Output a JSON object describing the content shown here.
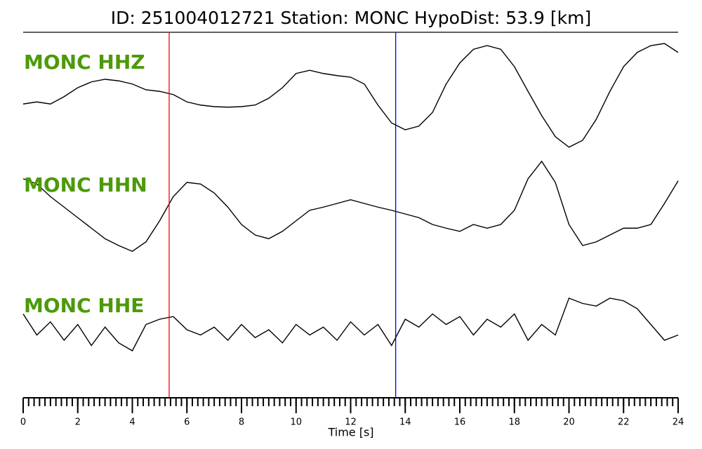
{
  "chart_data": {
    "type": "seismogram",
    "title": "ID: 251004012721   Station: MONC   HypoDist:    53.9 [km]",
    "x_label": "Time [s]",
    "xlim": [
      0,
      24
    ],
    "xticks": [
      0,
      2,
      4,
      6,
      8,
      10,
      12,
      14,
      16,
      18,
      20,
      22,
      24
    ],
    "xminorticks": [
      0,
      0.2,
      0.4,
      0.6,
      0.8,
      1,
      1.2,
      1.4,
      1.6,
      1.8,
      2,
      2.2,
      2.4,
      2.6,
      2.8,
      3,
      3.2,
      3.4,
      3.6,
      3.8,
      4,
      4.2,
      4.4,
      4.6,
      4.8,
      5,
      5.2,
      5.4,
      5.6,
      5.8,
      6,
      6.2,
      6.4,
      6.6,
      6.8,
      7,
      7.2,
      7.4,
      7.6,
      7.8,
      8,
      8.2,
      8.4,
      8.6,
      8.8,
      9,
      9.2,
      9.4,
      9.6,
      9.8,
      10,
      10.2,
      10.4,
      10.6,
      10.8,
      11,
      11.2,
      11.4,
      11.6,
      11.8,
      12,
      12.2,
      12.4,
      12.6,
      12.8,
      13,
      13.2,
      13.4,
      13.6,
      13.8,
      14,
      14.2,
      14.4,
      14.6,
      14.8,
      15,
      15.2,
      15.4,
      15.6,
      15.8,
      16,
      16.2,
      16.4,
      16.6,
      16.8,
      17,
      17.2,
      17.4,
      17.6,
      17.8,
      18,
      18.2,
      18.4,
      18.6,
      18.8,
      19,
      19.2,
      19.4,
      19.6,
      19.8,
      20,
      20.2,
      20.4,
      20.6,
      20.8,
      21,
      21.2,
      21.4,
      21.6,
      21.8,
      22,
      22.2,
      22.4,
      22.6,
      22.8,
      23,
      23.2,
      23.4,
      23.6,
      23.8,
      24
    ],
    "x": [
      0,
      0.5,
      1,
      1.5,
      2,
      2.5,
      3,
      3.5,
      4,
      4.5,
      5,
      5.5,
      6,
      6.5,
      7,
      7.5,
      8,
      8.5,
      9,
      9.5,
      10,
      10.5,
      11,
      11.5,
      12,
      12.5,
      13,
      13.5,
      14,
      14.5,
      15,
      15.5,
      16,
      16.5,
      17,
      17.5,
      18,
      18.5,
      19,
      19.5,
      20,
      20.5,
      21,
      21.5,
      22,
      22.5,
      23,
      23.5,
      24
    ],
    "label_color": "#4c9a0a",
    "series": [
      {
        "name": "MONC HHZ",
        "color": "#000000",
        "values": [
          -0.11,
          -0.07,
          -0.11,
          0.03,
          0.2,
          0.31,
          0.36,
          0.33,
          0.27,
          0.16,
          0.13,
          0.07,
          -0.07,
          -0.13,
          -0.16,
          -0.17,
          -0.16,
          -0.13,
          0,
          0.2,
          0.47,
          0.53,
          0.47,
          0.43,
          0.4,
          0.27,
          -0.13,
          -0.47,
          -0.6,
          -0.53,
          -0.27,
          0.27,
          0.67,
          0.93,
          1,
          0.93,
          0.6,
          0.13,
          -0.33,
          -0.73,
          -0.93,
          -0.8,
          -0.4,
          0.13,
          0.6,
          0.87,
          1,
          1.04,
          0.87
        ]
      },
      {
        "name": "MONC HHN",
        "color": "#000000",
        "values": [
          0.47,
          0.37,
          0.13,
          -0.07,
          -0.27,
          -0.47,
          -0.67,
          -0.8,
          -0.91,
          -0.73,
          -0.33,
          0.13,
          0.4,
          0.37,
          0.2,
          -0.07,
          -0.4,
          -0.6,
          -0.67,
          -0.53,
          -0.33,
          -0.13,
          -0.07,
          0,
          0.07,
          0,
          -0.07,
          -0.13,
          -0.2,
          -0.27,
          -0.4,
          -0.47,
          -0.53,
          -0.4,
          -0.47,
          -0.4,
          -0.13,
          0.47,
          0.8,
          0.4,
          -0.4,
          -0.8,
          -0.73,
          -0.6,
          -0.47,
          -0.47,
          -0.4,
          0,
          0.43
        ]
      },
      {
        "name": "MONC HHE",
        "color": "#000000",
        "values": [
          0.3,
          -0.1,
          0.15,
          -0.2,
          0.1,
          -0.3,
          0.05,
          -0.25,
          -0.4,
          0.1,
          0.2,
          0.25,
          0,
          -0.1,
          0.05,
          -0.2,
          0.1,
          -0.15,
          0,
          -0.25,
          0.1,
          -0.1,
          0.05,
          -0.2,
          0.15,
          -0.1,
          0.1,
          -0.3,
          0.2,
          0.05,
          0.3,
          0.1,
          0.25,
          -0.1,
          0.2,
          0.05,
          0.3,
          -0.2,
          0.1,
          -0.1,
          0.6,
          0.5,
          0.45,
          0.6,
          0.55,
          0.4,
          0.1,
          -0.2,
          -0.1
        ]
      }
    ],
    "markers": [
      {
        "x": 5.35,
        "color": "#ff0000"
      },
      {
        "x": 13.65,
        "color": "#0000ff"
      }
    ]
  }
}
